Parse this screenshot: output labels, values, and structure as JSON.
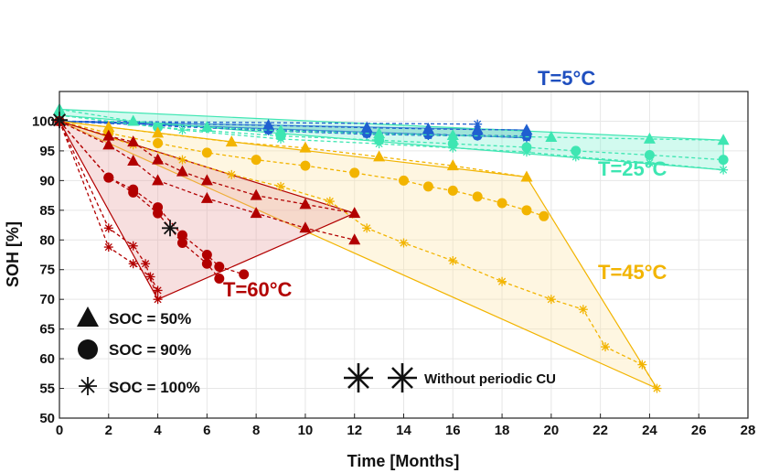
{
  "chart_data": {
    "type": "line",
    "xlabel": "Time [Months]",
    "ylabel": "SOH [%]",
    "xlim": [
      0,
      28
    ],
    "ylim": [
      50,
      105
    ],
    "xticks": [
      0,
      2,
      4,
      6,
      8,
      10,
      12,
      14,
      16,
      18,
      20,
      22,
      24,
      26,
      28
    ],
    "yticks": [
      50,
      55,
      60,
      65,
      70,
      75,
      80,
      85,
      90,
      95,
      100
    ],
    "grid": true,
    "temperature_labels": [
      {
        "text": "T=5°C",
        "color": "#1f4fbf"
      },
      {
        "text": "T=25°C",
        "color": "#3ee6b2"
      },
      {
        "text": "T=45°C",
        "color": "#f2b400"
      },
      {
        "text": "T=60°C",
        "color": "#b20000"
      }
    ],
    "legend": {
      "placement": "bottom-left",
      "entries": [
        {
          "marker": "triangle",
          "label": "SOC =   50%"
        },
        {
          "marker": "circle",
          "label": "SOC =   90%"
        },
        {
          "marker": "asterisk",
          "label": "SOC = 100%"
        }
      ],
      "cu_label": "Without periodic CU"
    },
    "bands": [
      {
        "temperature": "5°C",
        "color": "#1f5fd0",
        "fill": "#1f9fa0",
        "upper": [
          [
            0,
            100
          ],
          [
            19,
            98.5
          ]
        ],
        "lower": [
          [
            0,
            100
          ],
          [
            19,
            97.2
          ]
        ]
      },
      {
        "temperature": "25°C",
        "color": "#3ee6b2",
        "fill": "#7ff2d2",
        "upper": [
          [
            0,
            102
          ],
          [
            27,
            96.8
          ]
        ],
        "lower": [
          [
            0,
            101
          ],
          [
            27,
            91.8
          ]
        ]
      },
      {
        "temperature": "45°C",
        "color": "#f2b400",
        "fill": "#fbe6a8",
        "upper": [
          [
            0,
            100
          ],
          [
            19,
            90.6
          ]
        ],
        "lower": [
          [
            0,
            100
          ],
          [
            24.3,
            55
          ]
        ]
      },
      {
        "temperature": "60°C",
        "color": "#b20000",
        "fill": "#e8a3a3",
        "upper": [
          [
            0,
            100
          ],
          [
            12,
            84.5
          ]
        ],
        "lower": [
          [
            0,
            100
          ],
          [
            4,
            70
          ]
        ]
      }
    ],
    "series": [
      {
        "temperature": "5°C",
        "soc": "50%",
        "marker": "triangle",
        "color": "#1f5fd0",
        "x": [
          0,
          8.5,
          12.5,
          15,
          17,
          19
        ],
        "y": [
          100,
          99.3,
          98.9,
          98.7,
          98.6,
          98.5
        ]
      },
      {
        "temperature": "5°C",
        "soc": "90%",
        "marker": "circle",
        "color": "#1f5fd0",
        "x": [
          0,
          8.5,
          12.5,
          15,
          17,
          19
        ],
        "y": [
          100,
          98.6,
          98,
          97.8,
          97.6,
          97.5
        ]
      },
      {
        "temperature": "5°C",
        "soc": "100%",
        "marker": "asterisk",
        "color": "#1f5fd0",
        "x": [
          0,
          8.5,
          12.5,
          15,
          17,
          19
        ],
        "y": [
          100,
          98.4,
          97.8,
          97.6,
          97.5,
          97.2
        ]
      },
      {
        "temperature": "5°C",
        "soc": "100%",
        "marker": "asterisk",
        "color": "#1f5fd0",
        "x": [
          0,
          17
        ],
        "y": [
          100,
          99.5
        ]
      },
      {
        "temperature": "25°C",
        "soc": "50%",
        "marker": "triangle",
        "color": "#3ee6b2",
        "x": [
          0,
          3,
          6,
          9,
          13,
          16,
          20,
          24,
          27
        ],
        "y": [
          102,
          100,
          99,
          98.4,
          97.9,
          97.6,
          97.3,
          97,
          96.8
        ]
      },
      {
        "temperature": "25°C",
        "soc": "90%",
        "marker": "circle",
        "color": "#3ee6b2",
        "x": [
          0,
          4,
          9,
          13,
          16,
          19,
          21,
          24,
          27
        ],
        "y": [
          101,
          99,
          97.5,
          96.8,
          96.2,
          95.6,
          95,
          94.3,
          93.5
        ]
      },
      {
        "temperature": "25°C",
        "soc": "100%",
        "marker": "asterisk",
        "color": "#3ee6b2",
        "x": [
          0,
          5,
          9,
          13,
          16,
          19,
          21,
          24,
          27
        ],
        "y": [
          101,
          98.5,
          97,
          96.2,
          95.5,
          94.8,
          94,
          93,
          91.8
        ]
      },
      {
        "temperature": "45°C",
        "soc": "50%",
        "marker": "triangle",
        "color": "#f2b400",
        "x": [
          0,
          2,
          4,
          7,
          10,
          13,
          16,
          19
        ],
        "y": [
          100,
          99,
          98,
          96.5,
          95.5,
          94,
          92.5,
          90.6
        ]
      },
      {
        "temperature": "45°C",
        "soc": "90%",
        "marker": "circle",
        "color": "#f2b400",
        "x": [
          0,
          2,
          4,
          6,
          8,
          10,
          12,
          14,
          15,
          16,
          17,
          18,
          19,
          19.7
        ],
        "y": [
          100,
          98,
          96.3,
          94.7,
          93.5,
          92.5,
          91.3,
          90,
          89,
          88.3,
          87.3,
          86.2,
          85,
          84
        ]
      },
      {
        "temperature": "45°C",
        "soc": "100%",
        "marker": "asterisk",
        "color": "#f2b400",
        "x": [
          0,
          3,
          5,
          7,
          9,
          11,
          12.5,
          14,
          16,
          18,
          20,
          21.3,
          22.2,
          23.7,
          24.3
        ],
        "y": [
          100,
          96,
          93.5,
          91,
          89,
          86.5,
          82,
          79.5,
          76.5,
          73,
          70,
          68.3,
          62,
          59,
          55
        ]
      },
      {
        "temperature": "60°C",
        "soc": "50%",
        "marker": "triangle",
        "color": "#b20000",
        "x": [
          0,
          2,
          3,
          4,
          5,
          6,
          8,
          10,
          12
        ],
        "y": [
          100,
          97.5,
          96.5,
          93.5,
          91.5,
          90,
          87.5,
          86,
          84.5
        ]
      },
      {
        "temperature": "60°C",
        "soc": "90%",
        "marker": "circle",
        "color": "#b20000",
        "x": [
          0,
          2,
          3,
          4,
          5,
          6,
          6.5,
          7.5
        ],
        "y": [
          100,
          90.5,
          88.5,
          85.5,
          80.8,
          77.5,
          75.5,
          74.2
        ]
      },
      {
        "temperature": "60°C",
        "soc": "100%",
        "marker": "asterisk",
        "color": "#b20000",
        "x": [
          0,
          2,
          3,
          3.5,
          4
        ],
        "y": [
          100,
          82,
          79,
          76,
          70
        ]
      },
      {
        "temperature": "60°C",
        "soc": "50%",
        "marker": "triangle",
        "color": "#b20000",
        "x": [
          0,
          2,
          3,
          4,
          6,
          8,
          10,
          12
        ],
        "y": [
          100,
          96,
          93.3,
          90,
          87,
          84.5,
          82,
          80
        ]
      },
      {
        "temperature": "60°C",
        "soc": "90%",
        "marker": "circle",
        "color": "#b20000",
        "x": [
          0,
          2,
          3,
          4,
          5,
          6,
          6.5
        ],
        "y": [
          100,
          90.5,
          88,
          84.5,
          79.5,
          76,
          73.5
        ]
      },
      {
        "temperature": "60°C",
        "soc": "100%",
        "marker": "asterisk",
        "color": "#b20000",
        "x": [
          0,
          2,
          3,
          3.7,
          4
        ],
        "y": [
          100,
          78.8,
          76,
          73.8,
          71.5
        ]
      }
    ],
    "no_cu_points": [
      {
        "temperature": "60°C",
        "x": 4.5,
        "y": 82
      },
      {
        "temperature": "5°C",
        "x": 0,
        "y": 100.2
      }
    ]
  }
}
